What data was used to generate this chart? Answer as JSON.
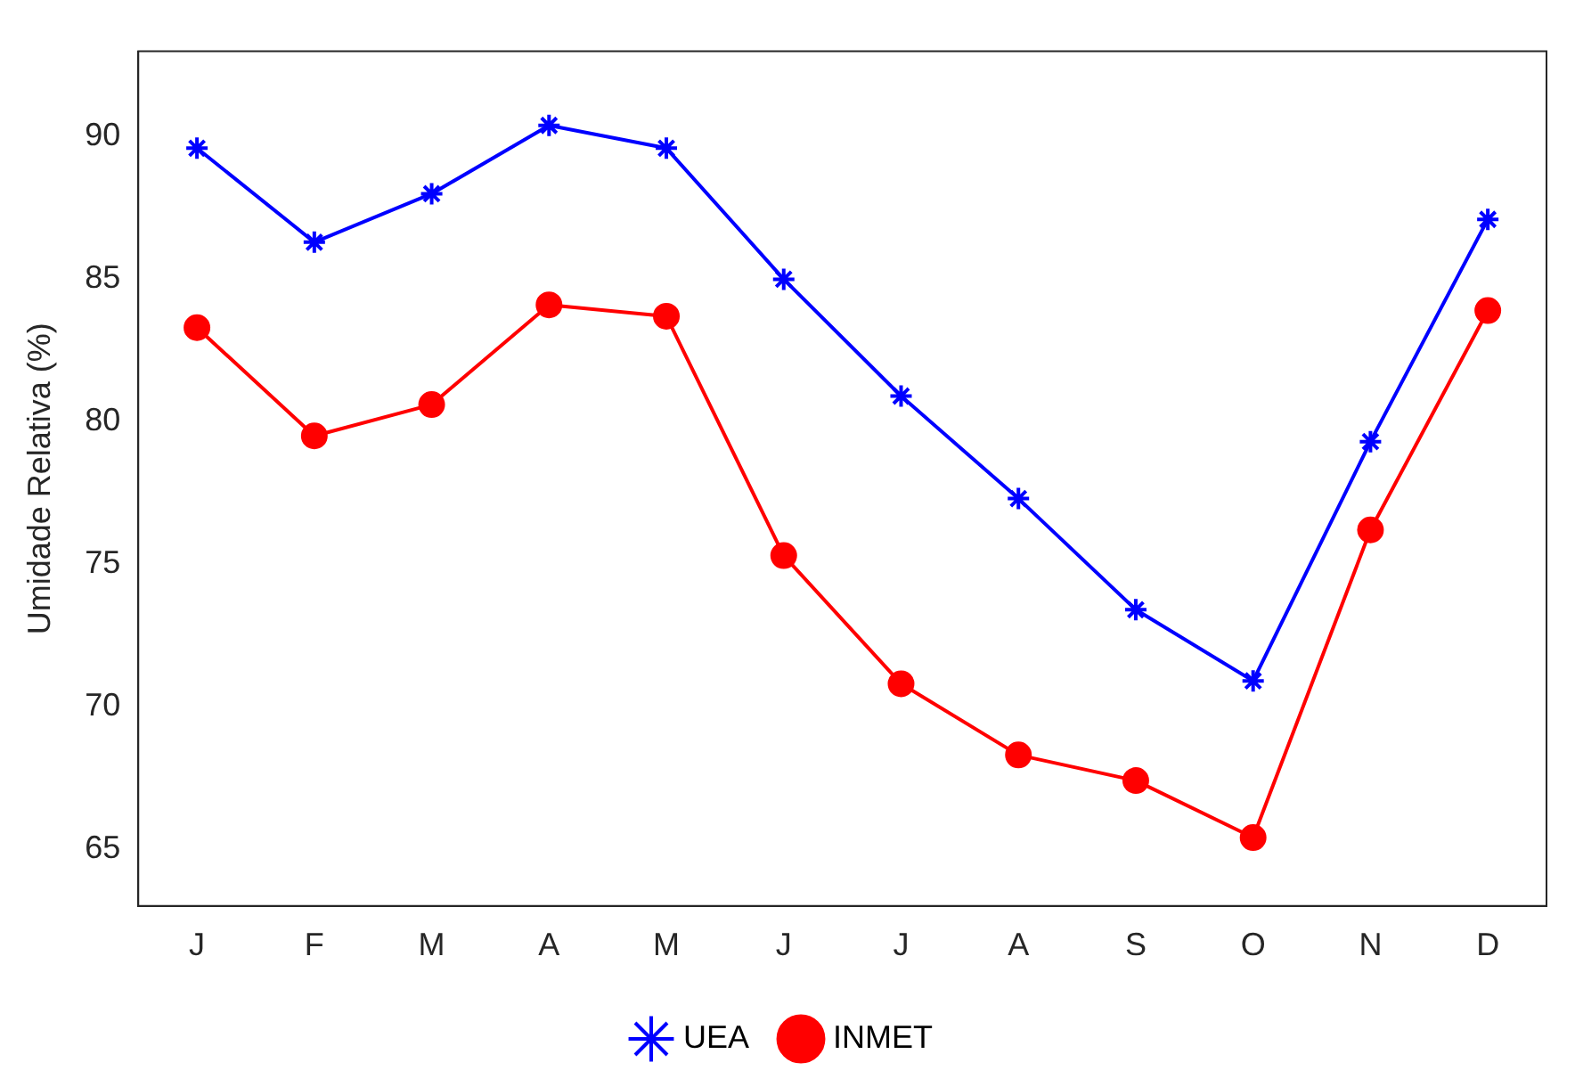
{
  "chart_data": {
    "type": "line",
    "ylabel": "Umidade Relativa (%)",
    "categories": [
      "J",
      "F",
      "M",
      "A",
      "M",
      "J",
      "J",
      "A",
      "S",
      "O",
      "N",
      "D"
    ],
    "series": [
      {
        "name": "UEA",
        "color": "#0000ff",
        "marker": "star",
        "values": [
          89.6,
          86.3,
          88.0,
          90.4,
          89.6,
          85.0,
          80.9,
          77.3,
          73.4,
          70.9,
          79.3,
          87.1
        ]
      },
      {
        "name": "INMET",
        "color": "#ff0000",
        "marker": "circle",
        "values": [
          83.3,
          79.5,
          80.6,
          84.1,
          83.7,
          75.3,
          70.8,
          68.3,
          67.4,
          65.4,
          76.2,
          83.9
        ]
      }
    ],
    "ylim": [
      63,
      93
    ],
    "yticks": [
      65,
      70,
      75,
      80,
      85,
      90
    ],
    "grid": false,
    "legend": "bottom"
  }
}
